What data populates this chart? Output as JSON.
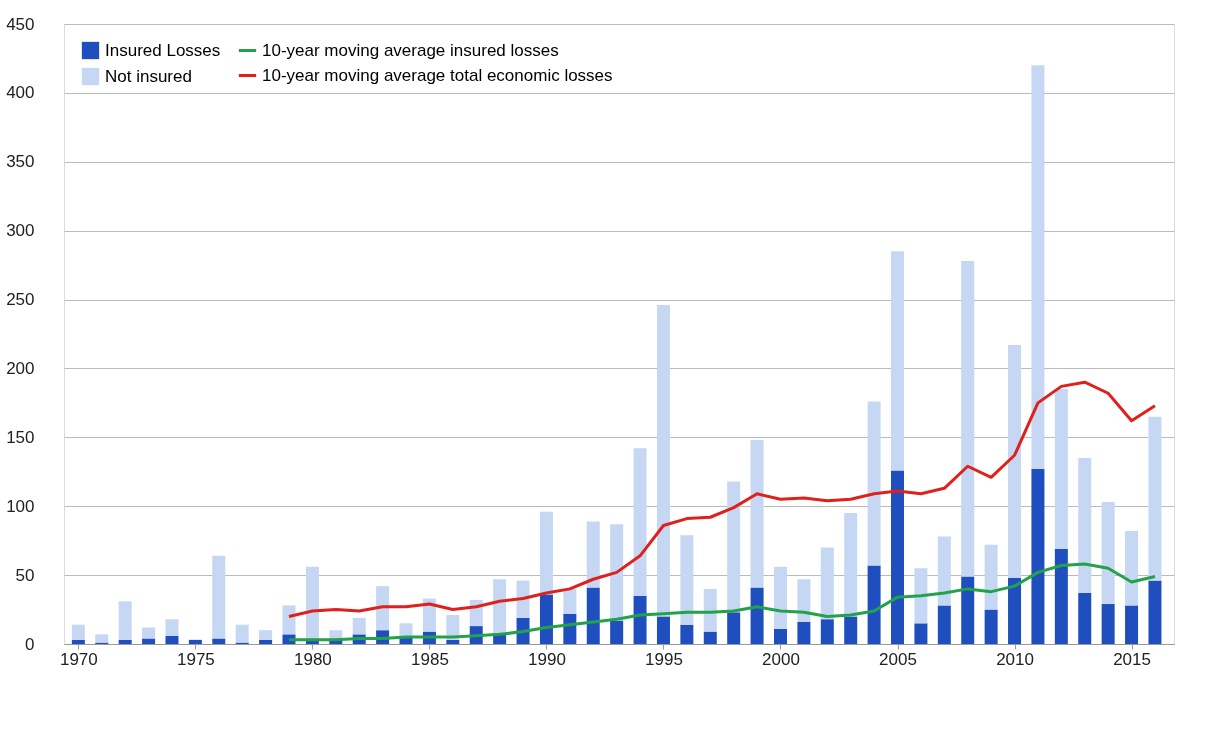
{
  "chart_data": {
    "type": "bar",
    "stacked": true,
    "x": [
      1970,
      1971,
      1972,
      1973,
      1974,
      1975,
      1976,
      1977,
      1978,
      1979,
      1980,
      1981,
      1982,
      1983,
      1984,
      1985,
      1986,
      1987,
      1988,
      1989,
      1990,
      1991,
      1992,
      1993,
      1994,
      1995,
      1996,
      1997,
      1998,
      1999,
      2000,
      2001,
      2002,
      2003,
      2004,
      2005,
      2006,
      2007,
      2008,
      2009,
      2010,
      2011,
      2012,
      2013,
      2014,
      2015,
      2016
    ],
    "series": [
      {
        "name": "Insured Losses",
        "color": "#1f4fbf",
        "values": [
          3,
          1,
          3,
          4,
          6,
          3,
          4,
          1,
          3,
          7,
          4,
          4,
          7,
          10,
          5,
          9,
          3,
          13,
          8,
          19,
          36,
          22,
          41,
          17,
          35,
          20,
          14,
          9,
          23,
          41,
          11,
          16,
          18,
          20,
          57,
          126,
          15,
          28,
          49,
          25,
          48,
          127,
          69,
          37,
          29,
          28,
          46
        ]
      },
      {
        "name": "Not insured",
        "color": "#c5d7f2",
        "values": [
          11,
          6,
          28,
          8,
          12,
          0,
          60,
          13,
          7,
          21,
          52,
          6,
          12,
          32,
          10,
          24,
          18,
          19,
          39,
          27,
          60,
          18,
          48,
          70,
          107,
          226,
          65,
          31,
          95,
          107,
          45,
          31,
          52,
          75,
          119,
          159,
          40,
          50,
          229,
          47,
          169,
          293,
          116,
          98,
          74,
          54,
          119
        ]
      },
      {
        "name": "10-year moving average insured losses",
        "type": "line",
        "color": "#22a34a",
        "x": [
          1979,
          1980,
          1981,
          1982,
          1983,
          1984,
          1985,
          1986,
          1987,
          1988,
          1989,
          1990,
          1991,
          1992,
          1993,
          1994,
          1995,
          1996,
          1997,
          1998,
          1999,
          2000,
          2001,
          2002,
          2003,
          2004,
          2005,
          2006,
          2007,
          2008,
          2009,
          2010,
          2011,
          2012,
          2013,
          2014,
          2015,
          2016
        ],
        "values": [
          3,
          3,
          3,
          4,
          4,
          5,
          5,
          5,
          6,
          7,
          9,
          12,
          14,
          16,
          18,
          21,
          22,
          23,
          23,
          24,
          27,
          24,
          23,
          20,
          21,
          24,
          34,
          35,
          37,
          40,
          38,
          42,
          52,
          57,
          58,
          55,
          45,
          49
        ]
      },
      {
        "name": "10-year moving average total economic losses",
        "type": "line",
        "color": "#e0201c",
        "x": [
          1979,
          1980,
          1981,
          1982,
          1983,
          1984,
          1985,
          1986,
          1987,
          1988,
          1989,
          1990,
          1991,
          1992,
          1993,
          1994,
          1995,
          1996,
          1997,
          1998,
          1999,
          2000,
          2001,
          2002,
          2003,
          2004,
          2005,
          2006,
          2007,
          2008,
          2009,
          2010,
          2011,
          2012,
          2013,
          2014,
          2015,
          2016
        ],
        "values": [
          20,
          24,
          25,
          24,
          27,
          27,
          29,
          25,
          27,
          31,
          33,
          37,
          40,
          47,
          52,
          64,
          86,
          91,
          92,
          99,
          109,
          105,
          106,
          104,
          105,
          109,
          111,
          109,
          113,
          129,
          121,
          137,
          175,
          187,
          190,
          182,
          162,
          173
        ]
      }
    ],
    "xlim": [
      1969.6,
      2016.6
    ],
    "xticks": [
      1970,
      1975,
      1980,
      1985,
      1990,
      1995,
      2000,
      2005,
      2010,
      2015
    ],
    "ylim": [
      0,
      450
    ],
    "yticks": [
      0,
      50,
      100,
      150,
      200,
      250,
      300,
      350,
      400,
      450
    ],
    "grid": "y",
    "legend": "top left"
  }
}
